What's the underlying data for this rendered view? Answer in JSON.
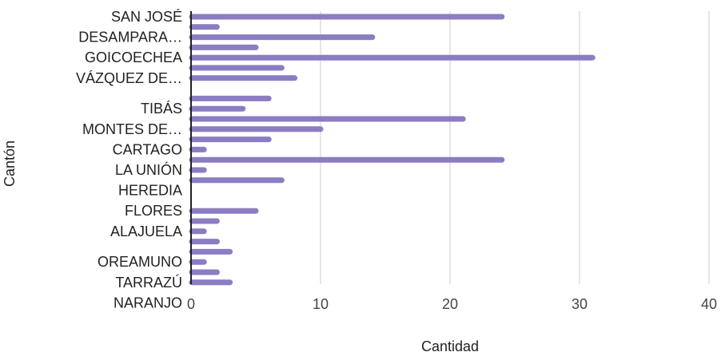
{
  "chart_data": {
    "type": "bar",
    "orientation": "horizontal",
    "xlabel": "Cantidad",
    "ylabel": "Cantón",
    "xlim": [
      0,
      40
    ],
    "xticks": [
      "0",
      "10",
      "20",
      "30",
      "40"
    ],
    "grid": "vertical",
    "legend": "none",
    "bar_color": "#8c7cc3",
    "categories": [
      "SAN JOSÉ",
      "",
      "DESAMPARA…",
      "",
      "GOICOECHEA",
      "",
      "VÁZQUEZ DE…",
      "",
      "",
      "TIBÁS",
      "",
      "MONTES DE…",
      "",
      "CARTAGO",
      "",
      "LA UNIÓN",
      "",
      "HEREDIA",
      "",
      "FLORES",
      "",
      "ALAJUELA",
      "",
      "",
      "OREAMUNO",
      "",
      "TARRAZÚ",
      "",
      "NARANJO",
      ""
    ],
    "values": [
      24,
      2,
      14,
      5,
      31,
      7,
      8,
      null,
      6,
      4,
      21,
      10,
      6,
      1,
      24,
      1,
      7,
      null,
      null,
      5,
      2,
      1,
      2,
      3,
      1,
      2,
      3,
      null,
      null,
      null
    ]
  }
}
